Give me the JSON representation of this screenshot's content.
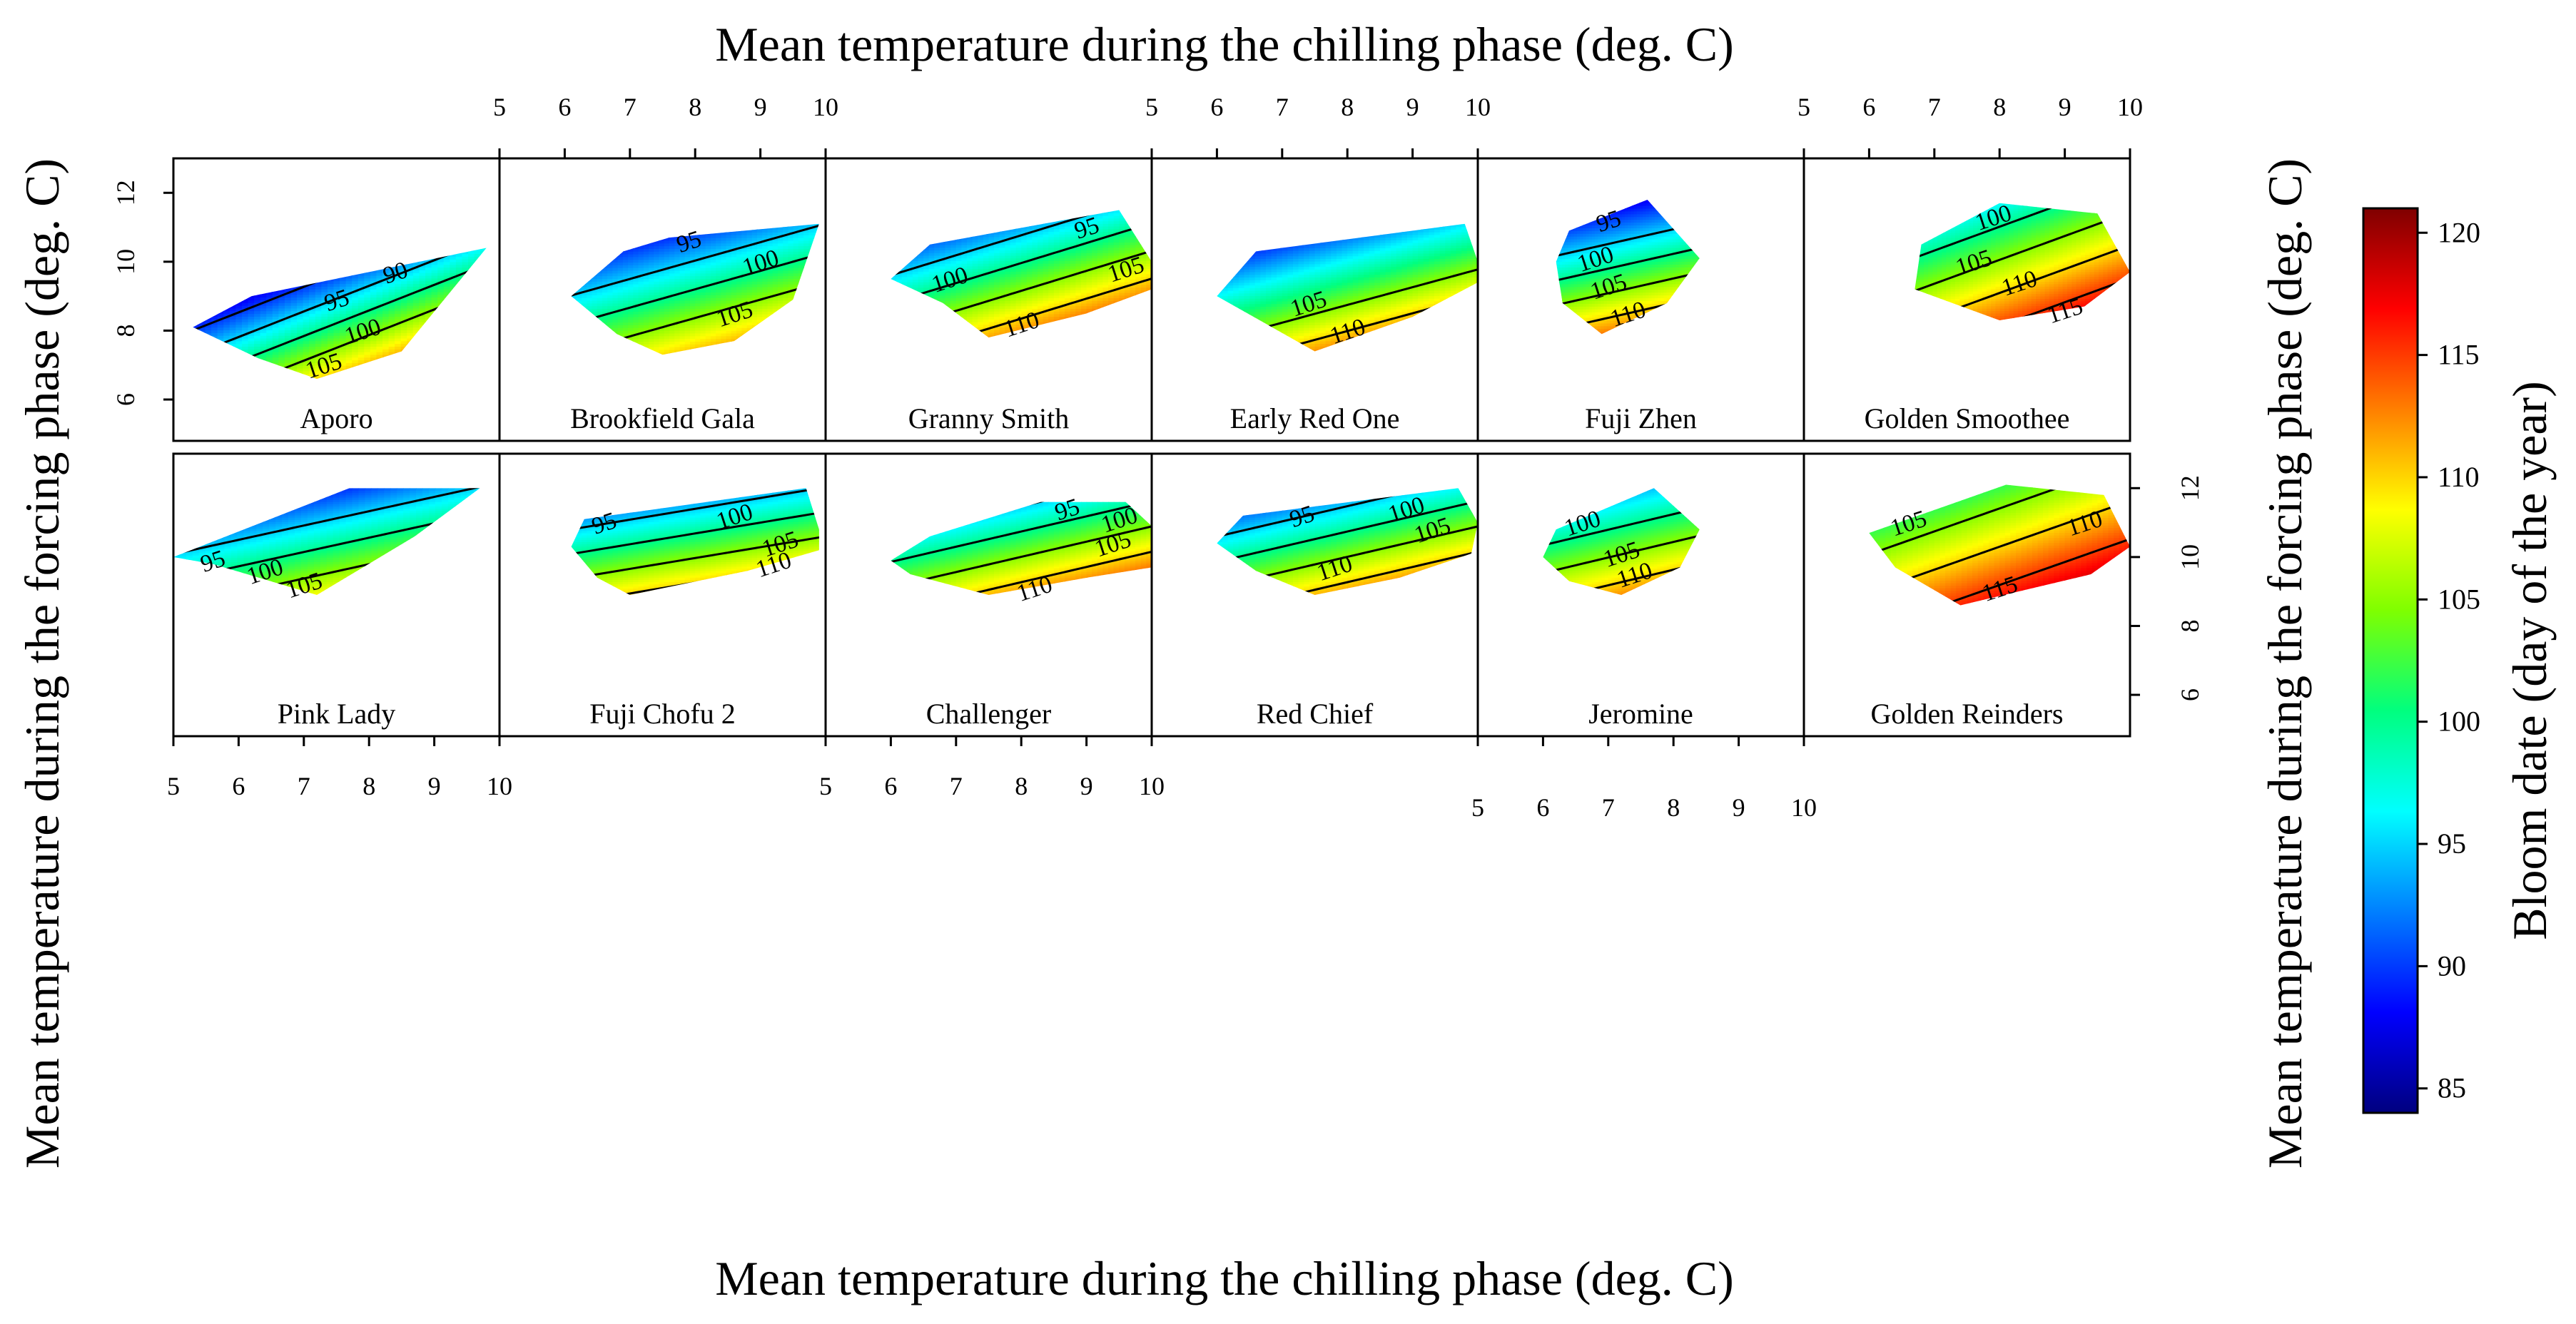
{
  "chart_data": {
    "type": "heatmap",
    "layout": "faceted contour plots, 2 rows x 6 columns",
    "titles": {
      "top_x": "Mean temperature during the chilling phase (deg. C)",
      "bottom_x": "Mean temperature during the chilling phase (deg. C)",
      "left_y": "Mean temperature during the forcing phase (deg. C)",
      "right_y": "Mean temperature during the forcing phase (deg. C)"
    },
    "x_range": [
      5,
      10
    ],
    "y_range": [
      4.8,
      13
    ],
    "x_ticks": [
      "5",
      "6",
      "7",
      "8",
      "9",
      "10"
    ],
    "y_ticks": [
      "6",
      "8",
      "10",
      "12"
    ],
    "colorbar": {
      "label": "Bloom date (day of the year)",
      "range": [
        84,
        121
      ],
      "ticks": [
        "85",
        "90",
        "95",
        "100",
        "105",
        "110",
        "115",
        "120"
      ],
      "colors": [
        "#00007f",
        "#0000ff",
        "#007fff",
        "#00ffff",
        "#00ff7f",
        "#7fff00",
        "#ffff00",
        "#ff7f00",
        "#ff0000",
        "#7f0000"
      ]
    },
    "panels": [
      {
        "name": "Aporo",
        "row": 0,
        "col": 0,
        "hull": [
          [
            5.3,
            8.1
          ],
          [
            6.2,
            9.0
          ],
          [
            9.8,
            10.4
          ],
          [
            8.5,
            7.4
          ],
          [
            7.2,
            6.6
          ],
          [
            6.3,
            7.2
          ]
        ],
        "surface": {
          "base": 98,
          "bx": 5.2,
          "by": -7.0,
          "cx": 7.5,
          "cy": 8.5
        },
        "labels": [
          {
            "text": "90",
            "x": 8.4,
            "y": 9.7
          },
          {
            "text": "95",
            "x": 7.5,
            "y": 8.9
          },
          {
            "text": "100",
            "x": 7.9,
            "y": 8.0
          },
          {
            "text": "105",
            "x": 7.3,
            "y": 7.0
          }
        ]
      },
      {
        "name": "Brookfield Gala",
        "row": 0,
        "col": 1,
        "hull": [
          [
            6.1,
            9.0
          ],
          [
            6.9,
            10.3
          ],
          [
            7.6,
            10.7
          ],
          [
            9.9,
            11.1
          ],
          [
            9.5,
            8.9
          ],
          [
            8.6,
            7.7
          ],
          [
            7.5,
            7.3
          ],
          [
            6.8,
            7.9
          ]
        ],
        "surface": {
          "base": 100,
          "bx": 3.2,
          "by": -6.0,
          "cx": 8.0,
          "cy": 9.2
        },
        "labels": [
          {
            "text": "95",
            "x": 7.9,
            "y": 10.6
          },
          {
            "text": "100",
            "x": 9.0,
            "y": 10.0
          },
          {
            "text": "105",
            "x": 8.6,
            "y": 8.5
          }
        ]
      },
      {
        "name": "Granny Smith",
        "row": 0,
        "col": 2,
        "hull": [
          [
            6.0,
            9.5
          ],
          [
            6.6,
            10.5
          ],
          [
            9.5,
            11.5
          ],
          [
            10.0,
            10.0
          ],
          [
            10.0,
            9.2
          ],
          [
            9.0,
            8.5
          ],
          [
            7.5,
            7.8
          ],
          [
            6.8,
            8.8
          ]
        ],
        "surface": {
          "base": 101,
          "bx": 3.6,
          "by": -6.2,
          "cx": 8.0,
          "cy": 9.8
        },
        "labels": [
          {
            "text": "95",
            "x": 9.0,
            "y": 11.0
          },
          {
            "text": "100",
            "x": 6.9,
            "y": 9.5
          },
          {
            "text": "105",
            "x": 9.6,
            "y": 9.8
          },
          {
            "text": "110",
            "x": 8.0,
            "y": 8.2
          }
        ]
      },
      {
        "name": "Early Red One",
        "row": 0,
        "col": 3,
        "hull": [
          [
            6.0,
            9.0
          ],
          [
            6.6,
            10.3
          ],
          [
            7.8,
            10.6
          ],
          [
            9.8,
            11.1
          ],
          [
            10.0,
            10.0
          ],
          [
            10.0,
            9.4
          ],
          [
            9.0,
            8.4
          ],
          [
            7.5,
            7.4
          ]
        ],
        "surface": {
          "base": 102,
          "bx": 3.4,
          "by": -6.6,
          "cx": 8.0,
          "cy": 9.2
        },
        "labels": [
          {
            "text": "105",
            "x": 7.4,
            "y": 8.8
          },
          {
            "text": "110",
            "x": 8.0,
            "y": 8.0
          }
        ]
      },
      {
        "name": "Fuji Zhen",
        "row": 0,
        "col": 4,
        "hull": [
          [
            6.2,
            10.0
          ],
          [
            6.4,
            10.9
          ],
          [
            7.6,
            11.8
          ],
          [
            8.4,
            10.1
          ],
          [
            7.9,
            8.8
          ],
          [
            6.9,
            7.9
          ],
          [
            6.3,
            8.8
          ]
        ],
        "surface": {
          "base": 102,
          "bx": 3.0,
          "by": -7.0,
          "cx": 7.2,
          "cy": 9.6
        },
        "labels": [
          {
            "text": "95",
            "x": 7.0,
            "y": 11.2
          },
          {
            "text": "100",
            "x": 6.8,
            "y": 10.1
          },
          {
            "text": "105",
            "x": 7.0,
            "y": 9.3
          },
          {
            "text": "110",
            "x": 7.3,
            "y": 8.5
          }
        ]
      },
      {
        "name": "Golden Smoothee",
        "row": 0,
        "col": 5,
        "hull": [
          [
            6.7,
            9.2
          ],
          [
            6.8,
            10.5
          ],
          [
            8.0,
            11.7
          ],
          [
            9.5,
            11.4
          ],
          [
            10.0,
            9.7
          ],
          [
            9.3,
            8.7
          ],
          [
            8.0,
            8.3
          ]
        ],
        "surface": {
          "base": 106,
          "bx": 3.6,
          "by": -5.2,
          "cx": 8.2,
          "cy": 10.0
        },
        "labels": [
          {
            "text": "100",
            "x": 7.9,
            "y": 11.3
          },
          {
            "text": "105",
            "x": 7.6,
            "y": 10.0
          },
          {
            "text": "110",
            "x": 8.3,
            "y": 9.4
          },
          {
            "text": "115",
            "x": 9.0,
            "y": 8.6
          }
        ]
      },
      {
        "name": "Pink Lady",
        "row": 1,
        "col": 0,
        "hull": [
          [
            5.0,
            10.0
          ],
          [
            7.7,
            12.0
          ],
          [
            9.7,
            12.0
          ],
          [
            8.7,
            10.6
          ],
          [
            7.2,
            8.9
          ],
          [
            5.6,
            9.8
          ]
        ],
        "surface": {
          "base": 99,
          "bx": 2.7,
          "by": -6.5,
          "cx": 7.0,
          "cy": 10.3
        },
        "labels": [
          {
            "text": "95",
            "x": 5.6,
            "y": 9.9
          },
          {
            "text": "100",
            "x": 6.4,
            "y": 9.6
          },
          {
            "text": "105",
            "x": 7.0,
            "y": 9.2
          }
        ]
      },
      {
        "name": "Fuji Chofu 2",
        "row": 1,
        "col": 1,
        "hull": [
          [
            6.1,
            10.3
          ],
          [
            6.3,
            11.1
          ],
          [
            9.7,
            12.0
          ],
          [
            9.9,
            10.8
          ],
          [
            9.9,
            10.2
          ],
          [
            8.8,
            9.6
          ],
          [
            7.0,
            8.9
          ],
          [
            6.5,
            9.4
          ]
        ],
        "surface": {
          "base": 102,
          "bx": 2.2,
          "by": -7.0,
          "cx": 8.0,
          "cy": 10.4
        },
        "labels": [
          {
            "text": "95",
            "x": 6.6,
            "y": 11.0
          },
          {
            "text": "100",
            "x": 8.6,
            "y": 11.2
          },
          {
            "text": "105",
            "x": 9.3,
            "y": 10.4
          },
          {
            "text": "110",
            "x": 9.2,
            "y": 9.8
          }
        ]
      },
      {
        "name": "Challenger",
        "row": 1,
        "col": 2,
        "hull": [
          [
            6.0,
            9.9
          ],
          [
            6.6,
            10.6
          ],
          [
            8.3,
            11.6
          ],
          [
            9.6,
            11.6
          ],
          [
            10.0,
            10.9
          ],
          [
            10.0,
            9.7
          ],
          [
            9.0,
            9.4
          ],
          [
            7.5,
            8.9
          ],
          [
            6.3,
            9.5
          ]
        ],
        "surface": {
          "base": 103,
          "bx": 3.0,
          "by": -6.8,
          "cx": 8.0,
          "cy": 10.3
        },
        "labels": [
          {
            "text": "95",
            "x": 8.7,
            "y": 11.4
          },
          {
            "text": "100",
            "x": 9.5,
            "y": 11.1
          },
          {
            "text": "105",
            "x": 9.4,
            "y": 10.4
          },
          {
            "text": "110",
            "x": 8.2,
            "y": 9.1
          }
        ]
      },
      {
        "name": "Red Chief",
        "row": 1,
        "col": 3,
        "hull": [
          [
            6.0,
            10.4
          ],
          [
            6.4,
            11.2
          ],
          [
            9.7,
            12.0
          ],
          [
            10.0,
            11.0
          ],
          [
            9.9,
            10.1
          ],
          [
            8.8,
            9.4
          ],
          [
            7.5,
            8.9
          ],
          [
            6.6,
            9.6
          ]
        ],
        "surface": {
          "base": 103,
          "bx": 3.0,
          "by": -6.8,
          "cx": 8.0,
          "cy": 10.3
        },
        "labels": [
          {
            "text": "95",
            "x": 7.3,
            "y": 11.2
          },
          {
            "text": "100",
            "x": 8.9,
            "y": 11.4
          },
          {
            "text": "105",
            "x": 9.3,
            "y": 10.8
          },
          {
            "text": "110",
            "x": 7.8,
            "y": 9.7
          }
        ]
      },
      {
        "name": "Jeromine",
        "row": 1,
        "col": 4,
        "hull": [
          [
            6.0,
            10.0
          ],
          [
            6.2,
            10.8
          ],
          [
            7.7,
            12.0
          ],
          [
            8.4,
            10.8
          ],
          [
            8.1,
            9.7
          ],
          [
            7.2,
            8.9
          ],
          [
            6.4,
            9.3
          ]
        ],
        "surface": {
          "base": 103,
          "bx": 2.8,
          "by": -6.2,
          "cx": 7.2,
          "cy": 10.4
        },
        "labels": [
          {
            "text": "100",
            "x": 6.6,
            "y": 11.0
          },
          {
            "text": "105",
            "x": 7.2,
            "y": 10.1
          },
          {
            "text": "110",
            "x": 7.4,
            "y": 9.5
          }
        ]
      },
      {
        "name": "Golden Reinders",
        "row": 1,
        "col": 5,
        "hull": [
          [
            6.0,
            10.7
          ],
          [
            7.2,
            11.5
          ],
          [
            8.1,
            12.1
          ],
          [
            9.6,
            11.8
          ],
          [
            10.0,
            10.3
          ],
          [
            9.4,
            9.5
          ],
          [
            7.4,
            8.6
          ],
          [
            6.4,
            9.7
          ]
        ],
        "surface": {
          "base": 110,
          "bx": 3.0,
          "by": -4.5,
          "cx": 8.0,
          "cy": 10.3
        },
        "labels": [
          {
            "text": "105",
            "x": 6.6,
            "y": 11.0
          },
          {
            "text": "110",
            "x": 9.3,
            "y": 11.0
          },
          {
            "text": "115",
            "x": 8.0,
            "y": 9.1
          }
        ]
      }
    ]
  }
}
